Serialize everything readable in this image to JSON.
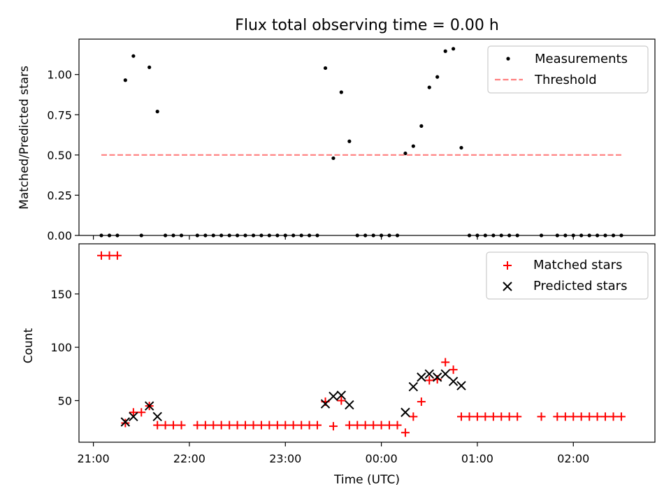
{
  "figure": {
    "title": "Flux total observing time = 0.00 h"
  },
  "chart_data": [
    {
      "type": "scatter",
      "title": "Flux total observing time = 0.00 h",
      "xlabel": "",
      "ylabel": "Matched/Predicted stars",
      "x_unit": "hours since 21:00 UTC",
      "xlim": [
        -0.15,
        5.85
      ],
      "ylim": [
        0.0,
        1.22
      ],
      "x_ticks": [
        0,
        1,
        2,
        3,
        4,
        5
      ],
      "y_ticks": [
        0.0,
        0.25,
        0.5,
        0.75,
        1.0
      ],
      "y_tick_labels": [
        "0.00",
        "0.25",
        "0.50",
        "0.75",
        "1.00"
      ],
      "legend": {
        "placement": "top-right",
        "entries": [
          "Measurements",
          "Threshold"
        ]
      },
      "series": [
        {
          "name": "Measurements",
          "marker": "dot",
          "color": "#000000",
          "points": [
            [
              0.083,
              0
            ],
            [
              0.167,
              0
            ],
            [
              0.25,
              0
            ],
            [
              0.333,
              0.965
            ],
            [
              0.417,
              1.115
            ],
            [
              0.5,
              0
            ],
            [
              0.583,
              1.045
            ],
            [
              0.667,
              0.77
            ],
            [
              0.75,
              0
            ],
            [
              0.833,
              0
            ],
            [
              0.917,
              0
            ],
            [
              1.083,
              0
            ],
            [
              1.167,
              0
            ],
            [
              1.25,
              0
            ],
            [
              1.333,
              0
            ],
            [
              1.417,
              0
            ],
            [
              1.5,
              0
            ],
            [
              1.583,
              0
            ],
            [
              1.667,
              0
            ],
            [
              1.75,
              0
            ],
            [
              1.833,
              0
            ],
            [
              1.917,
              0
            ],
            [
              2.0,
              0
            ],
            [
              2.083,
              0
            ],
            [
              2.167,
              0
            ],
            [
              2.25,
              0
            ],
            [
              2.333,
              0
            ],
            [
              2.417,
              1.04
            ],
            [
              2.5,
              0.48
            ],
            [
              2.583,
              0.89
            ],
            [
              2.667,
              0.585
            ],
            [
              2.75,
              0
            ],
            [
              2.833,
              0
            ],
            [
              2.917,
              0
            ],
            [
              3.0,
              0
            ],
            [
              3.083,
              0
            ],
            [
              3.167,
              0
            ],
            [
              3.25,
              0.51
            ],
            [
              3.333,
              0.555
            ],
            [
              3.417,
              0.68
            ],
            [
              3.5,
              0.92
            ],
            [
              3.583,
              0.985
            ],
            [
              3.667,
              1.145
            ],
            [
              3.75,
              1.16
            ],
            [
              3.833,
              0.545
            ],
            [
              3.917,
              0
            ],
            [
              4.0,
              0
            ],
            [
              4.083,
              0
            ],
            [
              4.167,
              0
            ],
            [
              4.25,
              0
            ],
            [
              4.333,
              0
            ],
            [
              4.417,
              0
            ],
            [
              4.667,
              0
            ],
            [
              4.833,
              0
            ],
            [
              4.917,
              0
            ],
            [
              5.0,
              0
            ],
            [
              5.083,
              0
            ],
            [
              5.167,
              0
            ],
            [
              5.25,
              0
            ],
            [
              5.333,
              0
            ],
            [
              5.417,
              0
            ],
            [
              5.5,
              0
            ]
          ]
        },
        {
          "name": "Threshold",
          "type": "line",
          "style": "dashed",
          "color": "#ff7f7f",
          "points": [
            [
              0.083,
              0.5
            ],
            [
              5.5,
              0.5
            ]
          ]
        }
      ]
    },
    {
      "type": "scatter",
      "title": "",
      "xlabel": "Time (UTC)",
      "ylabel": "Count",
      "x_unit": "hours since 21:00 UTC",
      "xlim": [
        -0.15,
        5.85
      ],
      "ylim": [
        11,
        197
      ],
      "x_ticks": [
        0,
        1,
        2,
        3,
        4,
        5
      ],
      "x_tick_labels": [
        "21:00",
        "22:00",
        "23:00",
        "00:00",
        "01:00",
        "02:00"
      ],
      "y_ticks": [
        50,
        100,
        150
      ],
      "y_tick_labels": [
        "50",
        "100",
        "150"
      ],
      "legend": {
        "placement": "top-right",
        "entries": [
          "Matched stars",
          "Predicted stars"
        ]
      },
      "series": [
        {
          "name": "Matched stars",
          "marker": "plus",
          "color": "#ff0000",
          "points": [
            [
              0.083,
              186
            ],
            [
              0.167,
              186
            ],
            [
              0.25,
              186
            ],
            [
              0.333,
              29
            ],
            [
              0.417,
              39
            ],
            [
              0.5,
              39
            ],
            [
              0.583,
              45
            ],
            [
              0.667,
              27
            ],
            [
              0.75,
              27
            ],
            [
              0.833,
              27
            ],
            [
              0.917,
              27
            ],
            [
              1.083,
              27
            ],
            [
              1.167,
              27
            ],
            [
              1.25,
              27
            ],
            [
              1.333,
              27
            ],
            [
              1.417,
              27
            ],
            [
              1.5,
              27
            ],
            [
              1.583,
              27
            ],
            [
              1.667,
              27
            ],
            [
              1.75,
              27
            ],
            [
              1.833,
              27
            ],
            [
              1.917,
              27
            ],
            [
              2.0,
              27
            ],
            [
              2.083,
              27
            ],
            [
              2.167,
              27
            ],
            [
              2.25,
              27
            ],
            [
              2.333,
              27
            ],
            [
              2.417,
              49
            ],
            [
              2.5,
              26
            ],
            [
              2.583,
              50
            ],
            [
              2.667,
              27
            ],
            [
              2.75,
              27
            ],
            [
              2.833,
              27
            ],
            [
              2.917,
              27
            ],
            [
              3.0,
              27
            ],
            [
              3.083,
              27
            ],
            [
              3.167,
              27
            ],
            [
              3.25,
              20
            ],
            [
              3.333,
              35
            ],
            [
              3.417,
              49
            ],
            [
              3.5,
              69
            ],
            [
              3.583,
              70
            ],
            [
              3.667,
              86
            ],
            [
              3.75,
              79
            ],
            [
              3.833,
              35
            ],
            [
              3.917,
              35
            ],
            [
              4.0,
              35
            ],
            [
              4.083,
              35
            ],
            [
              4.167,
              35
            ],
            [
              4.25,
              35
            ],
            [
              4.333,
              35
            ],
            [
              4.417,
              35
            ],
            [
              4.667,
              35
            ],
            [
              4.833,
              35
            ],
            [
              4.917,
              35
            ],
            [
              5.0,
              35
            ],
            [
              5.083,
              35
            ],
            [
              5.167,
              35
            ],
            [
              5.25,
              35
            ],
            [
              5.333,
              35
            ],
            [
              5.417,
              35
            ],
            [
              5.5,
              35
            ]
          ]
        },
        {
          "name": "Predicted stars",
          "marker": "x",
          "color": "#000000",
          "points": [
            [
              0.333,
              30
            ],
            [
              0.417,
              35
            ],
            [
              0.583,
              45
            ],
            [
              0.667,
              35
            ],
            [
              2.417,
              47
            ],
            [
              2.5,
              54
            ],
            [
              2.583,
              55
            ],
            [
              2.667,
              46
            ],
            [
              3.25,
              39
            ],
            [
              3.333,
              63
            ],
            [
              3.417,
              72
            ],
            [
              3.5,
              75
            ],
            [
              3.583,
              72
            ],
            [
              3.667,
              75
            ],
            [
              3.75,
              68
            ],
            [
              3.833,
              64
            ]
          ]
        }
      ]
    }
  ]
}
